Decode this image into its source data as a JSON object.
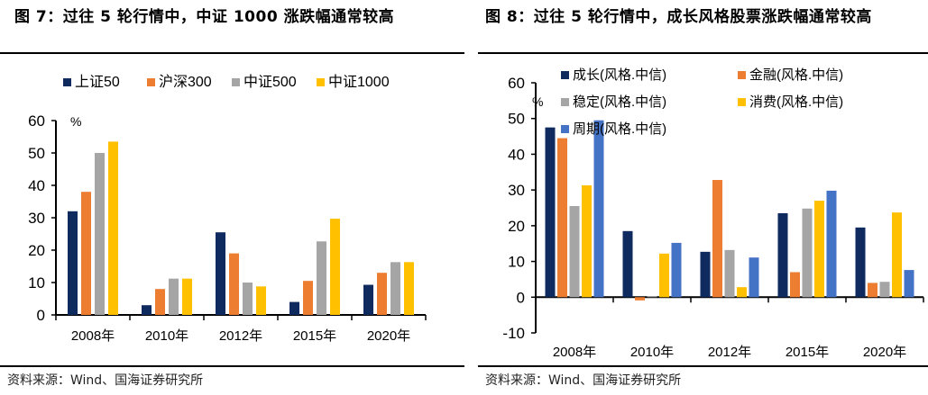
{
  "figures": [
    {
      "title": "图 7：过往 5 轮行情中，中证 1000 涨跌幅通常较高",
      "source": "资料来源：Wind、国海证券研究所"
    },
    {
      "title": "图 8：过往 5 轮行情中，成长风格股票涨跌幅通常较高",
      "source": "资料来源：Wind、国海证券研究所"
    }
  ],
  "chart_data": [
    {
      "type": "bar",
      "title": "图 7：过往 5 轮行情中，中证 1000 涨跌幅通常较高",
      "xlabel": "",
      "ylabel": "%",
      "ylim": [
        0,
        60
      ],
      "yticks": [
        0,
        10,
        20,
        30,
        40,
        50,
        60
      ],
      "grid": false,
      "legend_position": "top",
      "categories": [
        "2008年",
        "2010年",
        "2012年",
        "2015年",
        "2020年"
      ],
      "series": [
        {
          "name": "上证50",
          "color": "#0f2a5f",
          "values": [
            32,
            3,
            25.5,
            4,
            9.3
          ]
        },
        {
          "name": "沪深300",
          "color": "#ed7d31",
          "values": [
            38,
            8,
            19,
            10.5,
            13
          ]
        },
        {
          "name": "中证500",
          "color": "#a5a5a5",
          "values": [
            50,
            11.2,
            10,
            22.7,
            16.3
          ]
        },
        {
          "name": "中证1000",
          "color": "#ffc000",
          "values": [
            53.5,
            11.2,
            8.8,
            29.7,
            16.3
          ]
        }
      ]
    },
    {
      "type": "bar",
      "title": "图 8：过往 5 轮行情中，成长风格股票涨跌幅通常较高",
      "xlabel": "",
      "ylabel": "%",
      "ylim": [
        -10,
        60
      ],
      "yticks": [
        -10,
        0,
        10,
        20,
        30,
        40,
        50,
        60
      ],
      "grid": false,
      "legend_position": "top-inside",
      "categories": [
        "2008年",
        "2010年",
        "2012年",
        "2015年",
        "2020年"
      ],
      "series": [
        {
          "name": "成长(风格.中信)",
          "color": "#0f2a5f",
          "values": [
            47.5,
            18.5,
            12.7,
            23.5,
            19.5
          ]
        },
        {
          "name": "金融(风格.中信)",
          "color": "#ed7d31",
          "values": [
            44.5,
            -0.9,
            32.8,
            7,
            4
          ]
        },
        {
          "name": "稳定(风格.中信)",
          "color": "#a5a5a5",
          "values": [
            25.5,
            0.3,
            13.2,
            24.8,
            4.3
          ]
        },
        {
          "name": "消费(风格.中信)",
          "color": "#ffc000",
          "values": [
            31.3,
            12.2,
            2.8,
            27,
            23.7
          ]
        },
        {
          "name": "周期(风格.中信)",
          "color": "#4472c4",
          "values": [
            49.5,
            15.2,
            11.1,
            29.8,
            7.6
          ]
        }
      ]
    }
  ]
}
